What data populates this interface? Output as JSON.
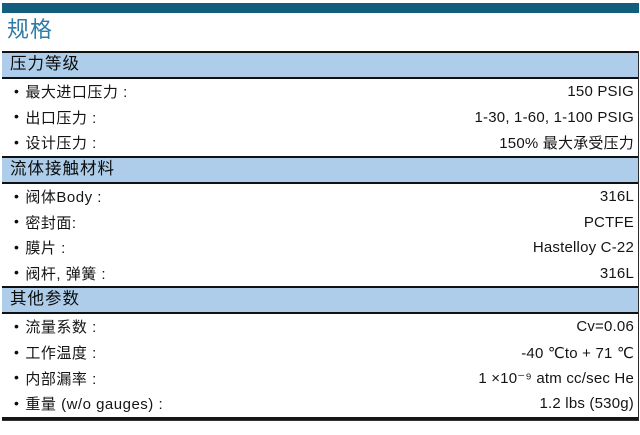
{
  "page": {
    "title": "规格"
  },
  "icons": {
    "bullet": "•"
  },
  "colors": {
    "top_bar": "#135E7D",
    "title": "#2E7CA8",
    "section_bg": "#AECDEA",
    "border": "#111111"
  },
  "sections": [
    {
      "title": "压力等级",
      "rows": [
        {
          "label": "最大进口压力 :",
          "value": "150 PSIG"
        },
        {
          "label": "出口压力 :",
          "value": "1-30, 1-60, 1-100 PSIG"
        },
        {
          "label": "设计压力 :",
          "value": "150% 最大承受压力"
        }
      ]
    },
    {
      "title": "流体接触材料",
      "rows": [
        {
          "label": "阀体Body :",
          "value": "316L"
        },
        {
          "label": "密封面:",
          "value": "PCTFE"
        },
        {
          "label": "膜片 :",
          "value": "Hastelloy C-22"
        },
        {
          "label": "阀杆, 弹簧 :",
          "value": "316L"
        }
      ]
    },
    {
      "title": "其他参数",
      "rows": [
        {
          "label": "流量系数 :",
          "value": "Cv=0.06"
        },
        {
          "label": "工作温度 :",
          "value": "-40 ℃to + 71 ℃"
        },
        {
          "label": "内部漏率 :",
          "value": "1 ×10⁻⁹ atm cc/sec He"
        },
        {
          "label": "重量 (w/o gauges) :",
          "value": "1.2 lbs (530g)"
        }
      ]
    }
  ]
}
